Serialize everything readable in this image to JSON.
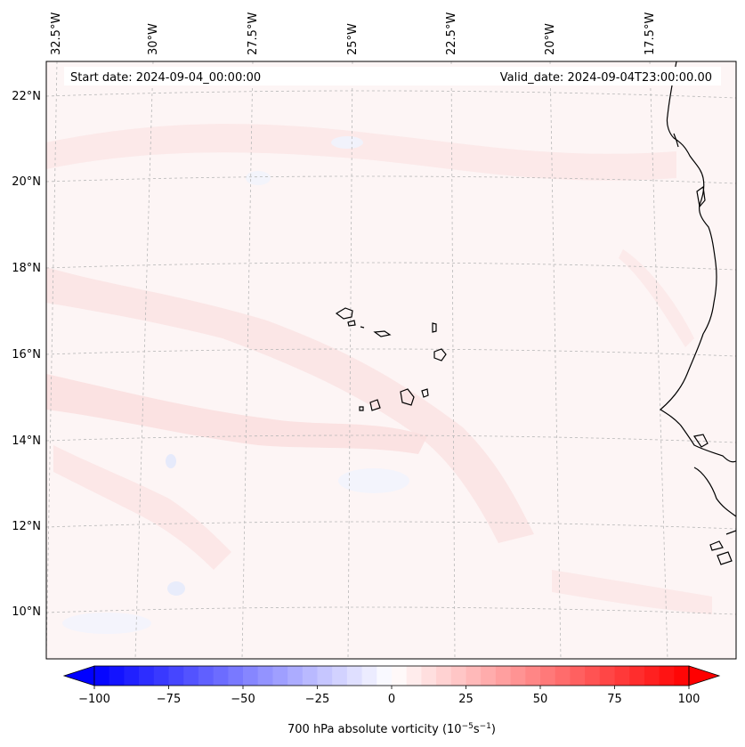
{
  "header": {
    "start_date": "Start date: 2024-09-04_00:00:00",
    "valid_date": "Valid_date: 2024-09-04T23:00:00.00"
  },
  "longitude_labels": [
    "32.5°W",
    "30°W",
    "27.5°W",
    "25°W",
    "22.5°W",
    "20°W",
    "17.5°W"
  ],
  "latitude_labels": [
    "22°N",
    "20°N",
    "18°N",
    "16°N",
    "14°N",
    "12°N",
    "10°N"
  ],
  "colorbar": {
    "label_main": "700 hPa absolute vorticity (10",
    "label_exp1": "−5",
    "label_mid": "s",
    "label_exp2": "−1",
    "label_end": ")",
    "ticks": [
      "−100",
      "−75",
      "−50",
      "−25",
      "0",
      "25",
      "50",
      "75",
      "100"
    ],
    "min": -100,
    "max": 100,
    "step": 5,
    "extend": "both",
    "colormap": "bwr",
    "color_low": "#0000ff",
    "color_mid": "#ffffff",
    "color_high": "#ff0000"
  },
  "colors": {
    "background_field": "#fdf6f6",
    "coastline": "#000000",
    "gridline": "#b0b0b0"
  }
}
